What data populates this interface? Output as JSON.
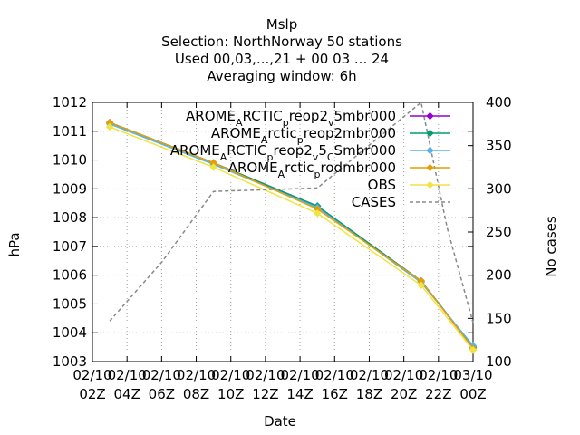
{
  "chart_data": {
    "type": "line",
    "title_lines": [
      "Mslp",
      "Selection: NorthNorway     50 stations",
      "Used  00,03,...,21  + 00 03 ... 24",
      "Averaging window:  6h"
    ],
    "xlabel": "Date",
    "ylabel": "hPa",
    "y2label": "No cases",
    "ylim": [
      1003,
      1012
    ],
    "y2lim": [
      100,
      400
    ],
    "yticks": [
      "1003",
      "1004",
      "1005",
      "1006",
      "1007",
      "1008",
      "1009",
      "1010",
      "1011",
      "1012"
    ],
    "y2ticks": [
      "100",
      "150",
      "200",
      "250",
      "300",
      "350",
      "400"
    ],
    "xlim": [
      0,
      22
    ],
    "xticks": [
      {
        "x": 0,
        "line1": "02/10",
        "line2": "02Z"
      },
      {
        "x": 2,
        "line1": "02/10",
        "line2": "04Z"
      },
      {
        "x": 4,
        "line1": "02/10",
        "line2": "06Z"
      },
      {
        "x": 6,
        "line1": "02/10",
        "line2": "08Z"
      },
      {
        "x": 8,
        "line1": "02/10",
        "line2": "10Z"
      },
      {
        "x": 10,
        "line1": "02/10",
        "line2": "12Z"
      },
      {
        "x": 12,
        "line1": "02/10",
        "line2": "14Z"
      },
      {
        "x": 14,
        "line1": "02/10",
        "line2": "16Z"
      },
      {
        "x": 16,
        "line1": "02/10",
        "line2": "18Z"
      },
      {
        "x": 18,
        "line1": "02/10",
        "line2": "20Z"
      },
      {
        "x": 20,
        "line1": "02/10",
        "line2": "22Z"
      },
      {
        "x": 22,
        "line1": "03/10",
        "line2": "00Z"
      }
    ],
    "grid": true,
    "legend_position": "top-right",
    "series": [
      {
        "name": "AROME_ARCTIC_preop2_v5mbr000",
        "label_parts": [
          [
            "AROME",
            0
          ],
          [
            "A",
            -1
          ],
          [
            "RCTIC",
            0
          ],
          [
            "p",
            -1
          ],
          [
            "reop2",
            0
          ],
          [
            "v",
            -1
          ],
          [
            "5mbr000",
            0
          ]
        ],
        "color": "#9400d3",
        "marker": "diamond",
        "axis": "y1",
        "x": [
          1,
          7,
          13,
          19,
          22
        ],
        "y": [
          1011.3,
          1009.9,
          1008.4,
          1005.8,
          1003.5
        ]
      },
      {
        "name": "AROME_Arctic_preop2mbr000",
        "label_parts": [
          [
            "AROME",
            0
          ],
          [
            "A",
            -1
          ],
          [
            "rctic",
            0
          ],
          [
            "p",
            -1
          ],
          [
            "reop2mbr000",
            0
          ]
        ],
        "color": "#009e73",
        "marker": "diamond",
        "axis": "y1",
        "x": [
          1,
          7,
          13,
          19,
          22
        ],
        "y": [
          1011.3,
          1009.9,
          1008.4,
          1005.8,
          1003.5
        ]
      },
      {
        "name": "AROME_ARCTIC_preop2_v5_CSmbr000",
        "label_parts": [
          [
            "AROME",
            0
          ],
          [
            "A",
            -1
          ],
          [
            "RCTIC",
            0
          ],
          [
            "p",
            -1
          ],
          [
            "reop2",
            0
          ],
          [
            "v",
            -1
          ],
          [
            "5",
            0
          ],
          [
            "C",
            -1
          ],
          [
            "Smbr000",
            0
          ]
        ],
        "color": "#56b4e9",
        "marker": "diamond",
        "axis": "y1",
        "x": [
          1,
          7,
          13,
          19,
          22
        ],
        "y": [
          1011.25,
          1009.85,
          1008.35,
          1005.75,
          1003.55
        ]
      },
      {
        "name": "AROME_Arctic_prodmbr000",
        "label_parts": [
          [
            "AROME",
            0
          ],
          [
            "A",
            -1
          ],
          [
            "rctic",
            0
          ],
          [
            "p",
            -1
          ],
          [
            "rodmbr000",
            0
          ]
        ],
        "color": "#e69f00",
        "marker": "diamond",
        "axis": "y1",
        "x": [
          1,
          7,
          13,
          19,
          22
        ],
        "y": [
          1011.3,
          1009.9,
          1008.3,
          1005.8,
          1003.45
        ]
      },
      {
        "name": "OBS",
        "label_parts": [
          [
            "OBS",
            0
          ]
        ],
        "color": "#f0e442",
        "marker": "diamond",
        "axis": "y1",
        "x": [
          1,
          7,
          13,
          19,
          22
        ],
        "y": [
          1011.15,
          1009.75,
          1008.15,
          1005.65,
          1003.4
        ]
      },
      {
        "name": "CASES",
        "label_parts": [
          [
            "CASES",
            0
          ]
        ],
        "color": "#888888",
        "marker": "none",
        "dash": true,
        "axis": "y2",
        "x": [
          1,
          4,
          7,
          13,
          19,
          20.5,
          22
        ],
        "y": [
          147,
          215,
          297,
          301,
          400,
          255,
          145
        ]
      }
    ]
  }
}
